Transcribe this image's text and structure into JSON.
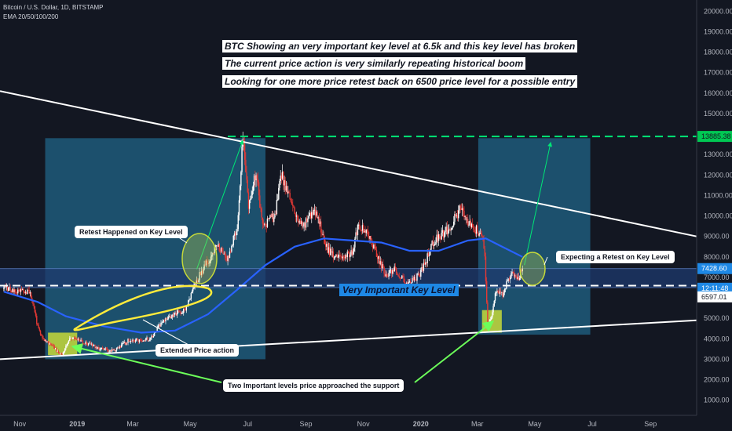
{
  "header": {
    "symbol_line": "Bitcoin / U.S. Dollar, 1D, BITSTAMP",
    "indicator_line": "EMA 20/50/100/200"
  },
  "notes": {
    "line1": "BTC Showing an very important key level at 6.5k and this key level has broken",
    "line2": "The current price action is very similarly repeating historical boom",
    "line3": "Looking for one more price retest back on 6500 price level for a possible entry"
  },
  "callouts": {
    "retest_happened": "Retest Happened on Key Level",
    "extended": "Extended Price action",
    "two_levels": "Two Important levels price approached the support",
    "expecting_retest": "Expecting a Retest on Key Level"
  },
  "key_level_label": "Very Important Key Level",
  "price_tags": {
    "target": "13885.38",
    "current": "7428.60",
    "countdown": "12:11:48",
    "key_level": "6597.01"
  },
  "colors": {
    "background": "#131722",
    "bull": "#ffffff",
    "bear": "#e53935",
    "ema": "#2962ff",
    "zone": "#1e5a7a",
    "key_band": "#1e3a6e",
    "target_line": "#00e676",
    "yellow": "#ffeb3b",
    "support_box": "#c6d93a"
  },
  "chart_data": {
    "type": "candlestick",
    "title": "Bitcoin / U.S. Dollar, 1D, BITSTAMP",
    "y_ticks": [
      1000,
      2000,
      3000,
      4000,
      5000,
      6000,
      7000,
      8000,
      9000,
      10000,
      11000,
      12000,
      13000,
      14000,
      15000,
      16000,
      17000,
      18000,
      19000,
      20000
    ],
    "y_tick_labels": [
      "1000.00",
      "2000.00",
      "3000.00",
      "4000.00",
      "5000.00",
      "6000.00",
      "7000.00",
      "8000.00",
      "9000.00",
      "10000.00",
      "11000.00",
      "12000.00",
      "13000.00",
      "14000.00",
      "15000.00",
      "16000.00",
      "17000.00",
      "18000.00",
      "19000.00",
      "20000.00"
    ],
    "ylim": [
      260,
      20550
    ],
    "x_ticks": [
      "Nov",
      "2019",
      "Mar",
      "May",
      "Jul",
      "Sep",
      "Nov",
      "2020",
      "Mar",
      "May",
      "Jul",
      "Sep"
    ],
    "x_range": [
      "2018-10-11",
      "2020-10-20"
    ],
    "key_level": 6597.01,
    "key_band": [
      6500,
      7428.6
    ],
    "target_level": 13885.38,
    "current_price": 7428.6,
    "price_path": [
      [
        "2018-10-15",
        6500
      ],
      [
        "2018-11-01",
        6350
      ],
      [
        "2018-11-12",
        6300
      ],
      [
        "2018-11-16",
        5600
      ],
      [
        "2018-11-20",
        4600
      ],
      [
        "2018-11-25",
        4000
      ],
      [
        "2018-12-05",
        3700
      ],
      [
        "2018-12-15",
        3200
      ],
      [
        "2018-12-24",
        4000
      ],
      [
        "2019-01-05",
        3900
      ],
      [
        "2019-01-25",
        3500
      ],
      [
        "2019-02-08",
        3400
      ],
      [
        "2019-02-24",
        3900
      ],
      [
        "2019-03-20",
        4000
      ],
      [
        "2019-04-02",
        4900
      ],
      [
        "2019-04-25",
        5400
      ],
      [
        "2019-05-12",
        7200
      ],
      [
        "2019-05-30",
        8600
      ],
      [
        "2019-06-10",
        7900
      ],
      [
        "2019-06-20",
        9500
      ],
      [
        "2019-06-26",
        13800
      ],
      [
        "2019-07-02",
        10500
      ],
      [
        "2019-07-10",
        12200
      ],
      [
        "2019-07-17",
        9500
      ],
      [
        "2019-07-30",
        10000
      ],
      [
        "2019-08-06",
        12000
      ],
      [
        "2019-08-20",
        10200
      ],
      [
        "2019-08-29",
        9500
      ],
      [
        "2019-09-10",
        10400
      ],
      [
        "2019-09-24",
        8300
      ],
      [
        "2019-10-06",
        7900
      ],
      [
        "2019-10-20",
        8200
      ],
      [
        "2019-10-26",
        9400
      ],
      [
        "2019-11-05",
        9300
      ],
      [
        "2019-11-20",
        7600
      ],
      [
        "2019-11-25",
        7100
      ],
      [
        "2019-12-05",
        7400
      ],
      [
        "2019-12-18",
        6600
      ],
      [
        "2020-01-01",
        7200
      ],
      [
        "2020-01-15",
        8800
      ],
      [
        "2020-02-01",
        9400
      ],
      [
        "2020-02-12",
        10400
      ],
      [
        "2020-02-20",
        9700
      ],
      [
        "2020-03-07",
        9000
      ],
      [
        "2020-03-09",
        7900
      ],
      [
        "2020-03-12",
        4800
      ],
      [
        "2020-03-16",
        5100
      ],
      [
        "2020-03-20",
        6200
      ],
      [
        "2020-03-28",
        6200
      ],
      [
        "2020-04-07",
        7300
      ],
      [
        "2020-04-13",
        6900
      ],
      [
        "2020-04-18",
        7428.6
      ]
    ],
    "ema_path": [
      [
        "2018-10-15",
        6300
      ],
      [
        "2018-11-20",
        5800
      ],
      [
        "2018-12-20",
        5100
      ],
      [
        "2019-01-30",
        4600
      ],
      [
        "2019-03-10",
        4300
      ],
      [
        "2019-04-15",
        4400
      ],
      [
        "2019-05-20",
        5200
      ],
      [
        "2019-06-20",
        6400
      ],
      [
        "2019-07-20",
        7600
      ],
      [
        "2019-08-20",
        8500
      ],
      [
        "2019-09-20",
        8900
      ],
      [
        "2019-10-20",
        8800
      ],
      [
        "2019-11-20",
        8700
      ],
      [
        "2019-12-20",
        8300
      ],
      [
        "2020-01-20",
        8300
      ],
      [
        "2020-02-20",
        8800
      ],
      [
        "2020-03-10",
        8900
      ],
      [
        "2020-04-18",
        8000
      ]
    ],
    "resistance_line": [
      [
        "2018-10-11",
        16100
      ],
      [
        "2020-10-20",
        9000
      ]
    ],
    "support_line": [
      [
        "2018-10-11",
        3000
      ],
      [
        "2020-10-20",
        4900
      ]
    ],
    "projection_arrows": [
      [
        [
          "2019-05-08",
          7400
        ],
        [
          "2019-06-26",
          13700
        ]
      ],
      [
        [
          "2020-04-20",
          7600
        ],
        [
          "2020-05-18",
          13600
        ]
      ]
    ],
    "zones": [
      {
        "x0": "2018-11-28",
        "x1": "2019-07-20",
        "y0": 3000,
        "y1": 13800
      },
      {
        "x0": "2020-03-02",
        "x1": "2020-06-29",
        "y0": 4200,
        "y1": 13800
      }
    ]
  }
}
